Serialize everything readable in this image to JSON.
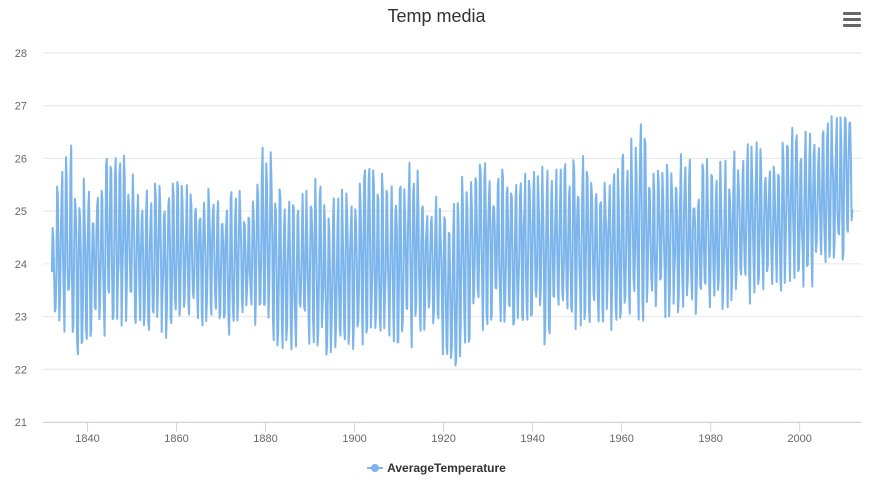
{
  "chart_data": {
    "type": "line",
    "title": "Temp media",
    "xlabel": "",
    "ylabel": "",
    "xlim": [
      1830,
      2014
    ],
    "ylim": [
      21,
      28
    ],
    "x_ticks": [
      "1840",
      "1860",
      "1880",
      "1900",
      "1920",
      "1940",
      "1960",
      "1980",
      "2000"
    ],
    "y_ticks": [
      "21",
      "22",
      "23",
      "24",
      "25",
      "26",
      "27",
      "28"
    ],
    "grid": "horizontal",
    "legend": "bottom-center",
    "series": [
      {
        "name": "AverageTemperature",
        "color": "#7cb5ec",
        "x": [
          1832,
          1835,
          1838,
          1841,
          1844,
          1847,
          1850,
          1853,
          1856,
          1859,
          1862,
          1865,
          1868,
          1871,
          1874,
          1877,
          1880,
          1883,
          1886,
          1889,
          1892,
          1895,
          1898,
          1901,
          1904,
          1907,
          1910,
          1913,
          1916,
          1919,
          1922,
          1925,
          1928,
          1931,
          1934,
          1937,
          1940,
          1943,
          1946,
          1949,
          1952,
          1955,
          1958,
          1961,
          1964,
          1967,
          1970,
          1973,
          1976,
          1979,
          1982,
          1985,
          1988,
          1991,
          1994,
          1997,
          2000,
          2003,
          2006,
          2009,
          2012
        ],
        "max": [
          24.9,
          26.8,
          25.9,
          25.6,
          26.2,
          26.5,
          25.9,
          25.6,
          25.9,
          25.7,
          25.6,
          25.5,
          25.8,
          25.6,
          25.5,
          25.4,
          26.8,
          25.5,
          25.7,
          25.5,
          26.2,
          25.4,
          25.7,
          25.8,
          26.1,
          25.7,
          25.9,
          26.2,
          25.6,
          25.5,
          25.5,
          25.9,
          26.1,
          25.9,
          26.1,
          25.9,
          26.0,
          26.0,
          26.0,
          26.1,
          26.2,
          25.9,
          25.8,
          26.3,
          26.9,
          26.0,
          26.0,
          26.3,
          26.0,
          26.1,
          26.2,
          26.2,
          26.6,
          26.4,
          26.5,
          26.5,
          26.9,
          26.7,
          26.8,
          27.2,
          27.1
        ],
        "min": [
          22.8,
          22.4,
          21.9,
          22.5,
          22.4,
          22.6,
          22.8,
          22.7,
          22.6,
          22.4,
          22.6,
          22.8,
          22.6,
          22.5,
          22.7,
          22.7,
          22.5,
          22.3,
          22.2,
          22.4,
          22.2,
          21.9,
          22.3,
          22.3,
          22.3,
          22.5,
          22.4,
          22.3,
          22.4,
          22.2,
          21.8,
          22.3,
          22.6,
          22.8,
          22.6,
          22.7,
          22.8,
          22.3,
          22.8,
          22.6,
          22.8,
          22.7,
          22.6,
          22.8,
          22.7,
          22.9,
          22.9,
          23.0,
          22.7,
          22.9,
          22.9,
          23.0,
          23.0,
          23.2,
          23.3,
          23.4,
          23.3,
          23.5,
          23.6,
          23.8,
          24.2
        ]
      }
    ]
  }
}
